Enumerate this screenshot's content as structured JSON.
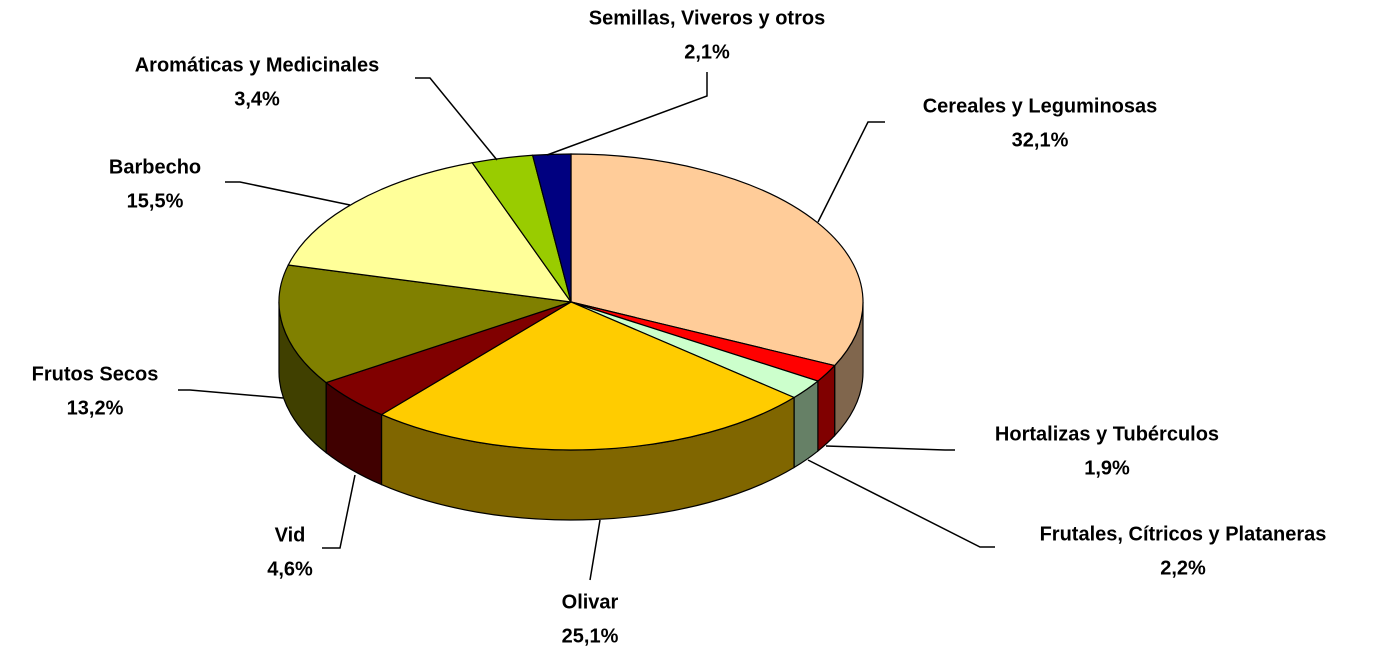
{
  "chart_data": {
    "type": "pie",
    "categories": [
      "Cereales y Leguminosas",
      "Hortalizas y Tubérculos",
      "Frutales, Cítricos y Plataneras",
      "Olivar",
      "Vid",
      "Frutos Secos",
      "Barbecho",
      "Aromáticas y Medicinales",
      "Semillas, Viveros y otros"
    ],
    "values": [
      32.1,
      1.9,
      2.2,
      25.1,
      4.6,
      13.2,
      15.5,
      3.4,
      2.1
    ],
    "value_labels": [
      "32,1%",
      "1,9%",
      "2,2%",
      "25,1%",
      "4,6%",
      "13,2%",
      "15,5%",
      "3,4%",
      "2,1%"
    ],
    "colors": [
      "#ffcc99",
      "#ff0000",
      "#ccffcc",
      "#ffcc00",
      "#800000",
      "#808000",
      "#ffff99",
      "#99cc00",
      "#000080"
    ]
  }
}
